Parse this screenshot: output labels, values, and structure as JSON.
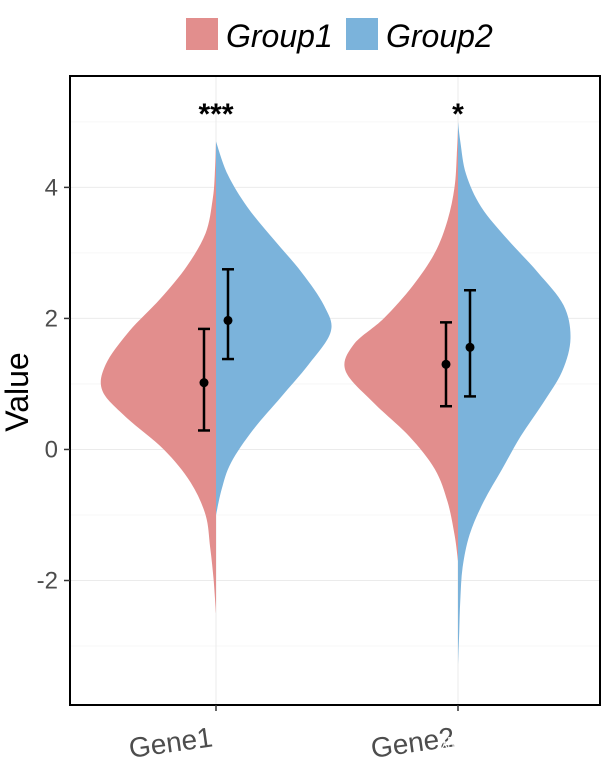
{
  "chart_data": {
    "type": "split_violin",
    "title": "",
    "xlabel": "",
    "ylabel": "Value",
    "ylim": [
      -3.9,
      5.7
    ],
    "yticks": [
      -2,
      0,
      2,
      4
    ],
    "categories": [
      "Gene1",
      "Gene2"
    ],
    "significance": [
      "***",
      "*"
    ],
    "legend": {
      "position": "top",
      "entries": [
        {
          "name": "Group1",
          "color": "#e28e8d"
        },
        {
          "name": "Group2",
          "color": "#7bb3db"
        }
      ]
    },
    "series": [
      {
        "name": "Group1",
        "side": "left",
        "color": "#e28e8d",
        "summary": [
          {
            "mean": 1.02,
            "lower": 0.29,
            "upper": 1.84
          },
          {
            "mean": 1.3,
            "lower": 0.66,
            "upper": 1.94
          }
        ],
        "violins": [
          [
            [
              -2.5,
              0.0
            ],
            [
              -2.0,
              0.02
            ],
            [
              -1.5,
              0.05
            ],
            [
              -1.0,
              0.09
            ],
            [
              -0.5,
              0.22
            ],
            [
              0.0,
              0.45
            ],
            [
              0.5,
              0.78
            ],
            [
              0.9,
              0.98
            ],
            [
              1.3,
              0.95
            ],
            [
              1.8,
              0.75
            ],
            [
              2.3,
              0.48
            ],
            [
              2.8,
              0.25
            ],
            [
              3.3,
              0.09
            ],
            [
              3.8,
              0.03
            ],
            [
              4.2,
              0.01
            ],
            [
              4.7,
              0.0
            ]
          ],
          [
            [
              -1.7,
              0.0
            ],
            [
              -1.3,
              0.03
            ],
            [
              -0.8,
              0.09
            ],
            [
              -0.3,
              0.2
            ],
            [
              0.2,
              0.42
            ],
            [
              0.7,
              0.72
            ],
            [
              1.2,
              0.97
            ],
            [
              1.6,
              0.9
            ],
            [
              2.0,
              0.64
            ],
            [
              2.5,
              0.39
            ],
            [
              3.0,
              0.2
            ],
            [
              3.5,
              0.09
            ],
            [
              4.0,
              0.03
            ],
            [
              4.5,
              0.01
            ],
            [
              4.9,
              0.0
            ]
          ]
        ]
      },
      {
        "name": "Group2",
        "side": "right",
        "color": "#7bb3db",
        "summary": [
          {
            "mean": 1.97,
            "lower": 1.38,
            "upper": 2.75
          },
          {
            "mean": 1.56,
            "lower": 0.81,
            "upper": 2.43
          }
        ],
        "violins": [
          [
            [
              -1.0,
              0.0
            ],
            [
              -0.6,
              0.05
            ],
            [
              -0.2,
              0.13
            ],
            [
              0.3,
              0.32
            ],
            [
              0.8,
              0.56
            ],
            [
              1.3,
              0.8
            ],
            [
              1.8,
              0.99
            ],
            [
              2.2,
              0.93
            ],
            [
              2.7,
              0.74
            ],
            [
              3.2,
              0.5
            ],
            [
              3.7,
              0.27
            ],
            [
              4.2,
              0.1
            ],
            [
              4.7,
              0.0
            ]
          ],
          [
            [
              -3.3,
              0.0
            ],
            [
              -2.8,
              0.01
            ],
            [
              -2.3,
              0.02
            ],
            [
              -1.8,
              0.04
            ],
            [
              -1.3,
              0.1
            ],
            [
              -0.8,
              0.22
            ],
            [
              -0.3,
              0.38
            ],
            [
              0.2,
              0.54
            ],
            [
              0.7,
              0.73
            ],
            [
              1.2,
              0.9
            ],
            [
              1.7,
              0.97
            ],
            [
              2.2,
              0.91
            ],
            [
              2.7,
              0.69
            ],
            [
              3.2,
              0.43
            ],
            [
              3.7,
              0.2
            ],
            [
              4.2,
              0.07
            ],
            [
              4.7,
              0.02
            ],
            [
              5.0,
              0.0
            ]
          ]
        ]
      }
    ]
  },
  "watermark": "知乎 @被炸熟的虾"
}
